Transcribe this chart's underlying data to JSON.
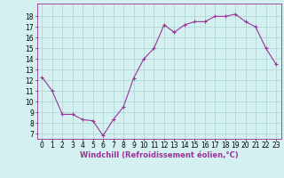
{
  "x": [
    0,
    1,
    2,
    3,
    4,
    5,
    6,
    7,
    8,
    9,
    10,
    11,
    12,
    13,
    14,
    15,
    16,
    17,
    18,
    19,
    20,
    21,
    22,
    23
  ],
  "y": [
    12.3,
    11.0,
    8.8,
    8.8,
    8.3,
    8.2,
    6.8,
    8.3,
    9.5,
    12.2,
    14.0,
    15.0,
    17.2,
    16.5,
    17.2,
    17.5,
    17.5,
    18.0,
    18.0,
    18.2,
    17.5,
    17.0,
    15.0,
    13.5
  ],
  "line_color": "#993399",
  "marker": "+",
  "marker_size": 3,
  "bg_color": "#d4f0f0",
  "grid_color": "#b0d8d8",
  "xlabel": "Windchill (Refroidissement éolien,°C)",
  "ylim": [
    6.5,
    19.2
  ],
  "xlim": [
    -0.5,
    23.5
  ],
  "yticks": [
    7,
    8,
    9,
    10,
    11,
    12,
    13,
    14,
    15,
    16,
    17,
    18
  ],
  "xticks": [
    0,
    1,
    2,
    3,
    4,
    5,
    6,
    7,
    8,
    9,
    10,
    11,
    12,
    13,
    14,
    15,
    16,
    17,
    18,
    19,
    20,
    21,
    22,
    23
  ],
  "label_fontsize": 6,
  "tick_fontsize": 5.5,
  "spine_color": "#993399"
}
